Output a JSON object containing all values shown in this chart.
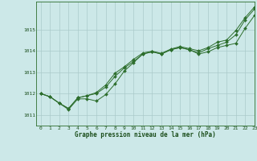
{
  "title": "Graphe pression niveau de la mer (hPa)",
  "bg_color": "#cce8e8",
  "grid_color": "#aacaca",
  "line_color": "#2d6e2d",
  "marker_color": "#2d6e2d",
  "xlim": [
    -0.5,
    23
  ],
  "ylim": [
    1010.5,
    1016.3
  ],
  "yticks": [
    1011,
    1012,
    1013,
    1014,
    1015
  ],
  "xticks": [
    0,
    1,
    2,
    3,
    4,
    5,
    6,
    7,
    8,
    9,
    10,
    11,
    12,
    13,
    14,
    15,
    16,
    17,
    18,
    19,
    20,
    21,
    22,
    23
  ],
  "series1": [
    1012.0,
    1011.85,
    1011.55,
    1011.25,
    1011.75,
    1011.75,
    1011.65,
    1011.95,
    1012.45,
    1013.05,
    1013.45,
    1013.85,
    1013.95,
    1013.85,
    1014.05,
    1014.15,
    1014.05,
    1013.85,
    1013.95,
    1014.15,
    1014.25,
    1014.35,
    1015.05,
    1015.65
  ],
  "series2": [
    1012.0,
    1011.85,
    1011.55,
    1011.3,
    1011.8,
    1011.9,
    1012.0,
    1012.3,
    1012.8,
    1013.2,
    1013.5,
    1013.85,
    1013.95,
    1013.85,
    1014.05,
    1014.15,
    1014.05,
    1013.9,
    1014.1,
    1014.25,
    1014.4,
    1014.75,
    1015.45,
    1015.95
  ],
  "series3": [
    1012.0,
    1011.85,
    1011.55,
    1011.3,
    1011.8,
    1011.9,
    1012.05,
    1012.4,
    1012.95,
    1013.25,
    1013.6,
    1013.9,
    1013.98,
    1013.88,
    1014.08,
    1014.2,
    1014.1,
    1014.0,
    1014.15,
    1014.4,
    1014.5,
    1014.95,
    1015.55,
    1016.05
  ]
}
